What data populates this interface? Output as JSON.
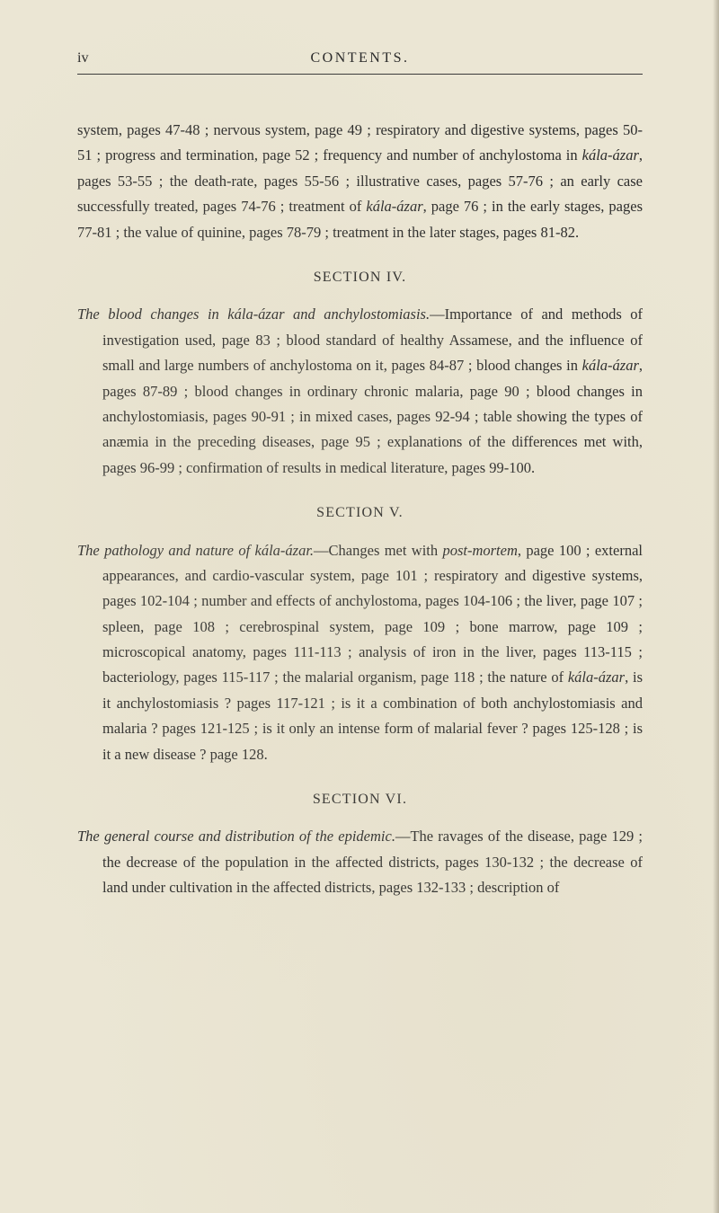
{
  "colors": {
    "background": "#ebe6d4",
    "text": "#2b2b2b",
    "header_text": "#2a2a2a",
    "rule": "#3a3a3a"
  },
  "typography": {
    "body_fontsize": 16.5,
    "line_height": 1.72,
    "header_fontsize": 16,
    "header_letterspacing": 2.5
  },
  "header": {
    "page_number": "iv",
    "title": "CONTENTS."
  },
  "sections": [
    {
      "heading": null,
      "text_parts": [
        "system, pages 47-48 ; nervous system, page 49 ; respiratory and digestive systems, pages 50-51 ; progress and termination, page 52 ; frequency and number of anchylostoma in ",
        {
          "italic": true,
          "text": "kála-ázar"
        },
        ", pages 53-55 ; the death-rate, pages 55-56 ; illustrative cases, pages 57-76 ; an early case successfully treated, pages 74-76 ; treatment of ",
        {
          "italic": true,
          "text": "kála-ázar"
        },
        ", page 76 ; in the early stages, pages 77-81 ; the value of quinine, pages 78-79 ; treatment in the later stages, pages 81-82."
      ]
    },
    {
      "heading": "SECTION IV.",
      "label_prefix": "The ",
      "label_italic": "blood changes in kála-ázar and anchylostomiasis.",
      "text_parts": [
        "—Importance of and methods of investigation used, page 83 ; blood standard of healthy Assamese, and the influence of small and large numbers of anchylostoma on it, pages 84-87 ; blood changes in ",
        {
          "italic": true,
          "text": "kála-ázar"
        },
        ", pages 87-89 ; blood changes in ordinary chronic malaria, page 90 ; blood changes in anchylostomiasis, pages 90-91 ; in mixed cases, pages 92-94 ; table showing the types of anæmia in the preceding diseases, page 95 ; explanations of the differences met with, pages 96-99 ; confirmation of results in medical literature, pages 99-100."
      ]
    },
    {
      "heading": "SECTION V.",
      "label_prefix": "The ",
      "label_italic": "pathology and nature of kála-ázar.",
      "text_parts": [
        "—Changes met with ",
        {
          "italic": true,
          "text": "post-mortem"
        },
        ", page 100 ; external appearances, and cardio-vascular system, page 101 ; respiratory and digestive systems, pages 102-104 ; number and effects of anchylostoma, pages 104-106 ; the liver, page 107 ; spleen, page 108 ; cerebrospinal system, page 109 ; bone marrow, page 109 ; microscopical anatomy, pages 111-113 ; analysis of iron in the liver, pages 113-115 ; bacteriology, pages 115-117 ; the malarial organism, page 118 ; the nature of ",
        {
          "italic": true,
          "text": "kála-ázar"
        },
        ", is it anchylostomiasis ? pages 117-121 ; is it a combination of both anchylostomiasis and malaria ? pages 121-125 ; is it only an intense form of malarial fever ? pages 125-128 ; is it a new disease ? page 128."
      ]
    },
    {
      "heading": "SECTION VI.",
      "label_prefix": "The ",
      "label_italic": "general course and distribution of the epidemic.",
      "text_parts": [
        "—The ravages of the disease, page 129 ; the decrease of the population in the affected districts, pages 130-132 ; the decrease of land under cultivation in the affected districts, pages 132-133 ; description of"
      ]
    }
  ]
}
